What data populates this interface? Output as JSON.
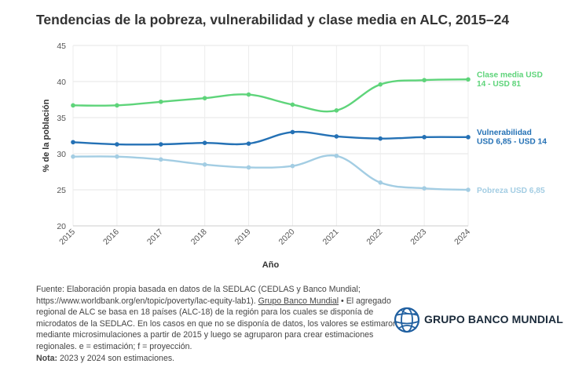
{
  "title": "Tendencias de la pobreza, vulnerabilidad y clase media en ALC, 2015–24",
  "chart_data": {
    "type": "line",
    "title": "Tendencias de la pobreza, vulnerabilidad y clase media en ALC, 2015–24",
    "xlabel": "Año",
    "ylabel": "% de la población",
    "ylim": [
      20,
      45
    ],
    "yticks": [
      20,
      25,
      30,
      35,
      40,
      45
    ],
    "categories": [
      "2015",
      "2016",
      "2017",
      "2018",
      "2019",
      "2020",
      "2021",
      "2022",
      "2023",
      "2024"
    ],
    "series": [
      {
        "name": "Clase media USD 14 - USD 81",
        "label_lines": [
          "Clase media USD",
          "14 - USD 81"
        ],
        "color": "#5ed47a",
        "values": [
          36.7,
          36.7,
          37.2,
          37.7,
          38.2,
          36.8,
          36.0,
          39.6,
          40.2,
          40.3
        ]
      },
      {
        "name": "Vulnerabilidad USD 6,85 - USD 14",
        "label_lines": [
          "Vulnerabilidad",
          "USD 6,85 - USD 14"
        ],
        "color": "#2471b5",
        "values": [
          31.6,
          31.3,
          31.3,
          31.5,
          31.4,
          33.0,
          32.4,
          32.1,
          32.3,
          32.3
        ]
      },
      {
        "name": "Pobreza USD 6,85",
        "label_lines": [
          "Pobreza USD 6,85"
        ],
        "color": "#a3cde3",
        "values": [
          29.6,
          29.6,
          29.2,
          28.5,
          28.1,
          28.3,
          29.7,
          26.0,
          25.2,
          25.0
        ]
      }
    ],
    "grid": true,
    "legend": "inline-right"
  },
  "footer": {
    "source_prefix": "Fuente: Elaboración propia basada en datos de la SEDLAC (CEDLAS y Banco Mundial; https://www.worldbank.org/en/topic/poverty/lac-equity-lab1). ",
    "source_link": "Grupo Banco Mundial",
    "source_suffix": " • El agregado regional de ALC se basa en 18 países (ALC-18) de la región para los cuales se disponía de microdatos de la SEDLAC. En los casos en que no se disponía de datos, los valores se estimaron mediante microsimulaciones a partir de 2015 y luego se agruparon para crear estimaciones regionales. e = estimación; f = proyección.",
    "note_label": "Nota:",
    "note_text": " 2023 y 2024 son estimaciones."
  },
  "logo": {
    "text": "GRUPO BANCO MUNDIAL"
  }
}
